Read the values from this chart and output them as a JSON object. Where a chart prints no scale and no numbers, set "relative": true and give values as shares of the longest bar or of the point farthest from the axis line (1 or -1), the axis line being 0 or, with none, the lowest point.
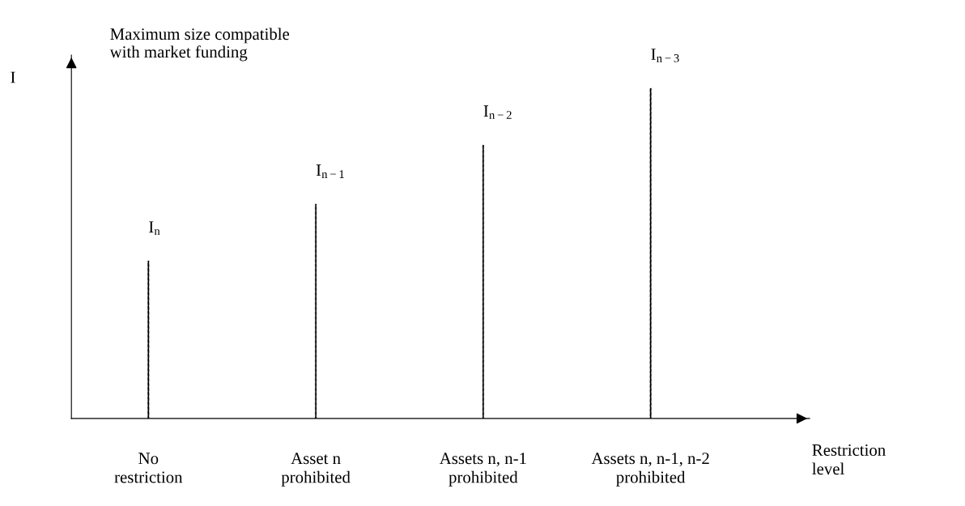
{
  "chart_data": {
    "type": "bar",
    "relative": true,
    "line_style": "dashdot",
    "color": "#000000",
    "ylabel": "I",
    "xlabel": "Restriction\nlevel",
    "categories": [
      "No\nrestriction",
      "Asset n\nprohibited",
      "Assets n, n-1\nprohibited",
      "Assets n, n-1, n-2\nprohibited"
    ],
    "values": [
      0.477,
      0.649,
      0.828,
      1.0
    ],
    "annotations": [
      "Maximum size compatible\nwith market funding",
      {
        "text": "I$_{n}$",
        "x": "No\nrestriction",
        "y": 0.477
      },
      {
        "text": "I$_{n−1}$",
        "x": "Asset n\nprohibited",
        "y": 0.649
      },
      {
        "text": "I$_{n−2}$",
        "x": "Assets n, n-1\nprohibited",
        "y": 0.828
      },
      {
        "text": "I$_{n−3}$",
        "x": "Assets n, n-1, n-2\nprohibited",
        "y": 1.0
      }
    ],
    "grid": false,
    "legend": false
  }
}
